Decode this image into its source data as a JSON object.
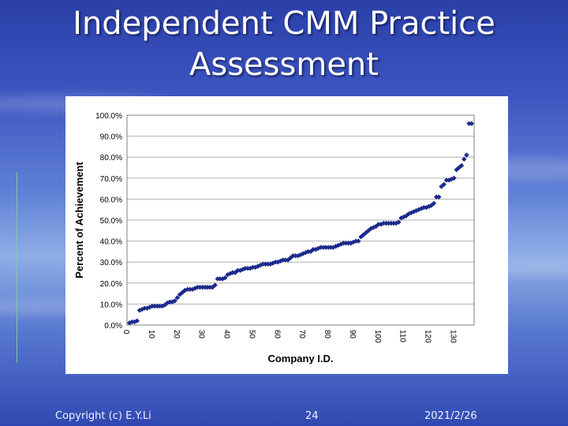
{
  "slide": {
    "title_line1": "Independent CMM Practice",
    "title_line2": "Assessment"
  },
  "footer": {
    "copyright": "Copyright (c) E.Y.Li",
    "page_number": "24",
    "date": "2021/2/26"
  },
  "chart_data": {
    "type": "scatter",
    "xlabel": "Company I.D.",
    "ylabel": "Percent of Achievement",
    "xlim": [
      0,
      138
    ],
    "ylim": [
      0,
      100
    ],
    "xticks": [
      "0",
      "10",
      "20",
      "30",
      "40",
      "50",
      "60",
      "70",
      "80",
      "90",
      "100",
      "110",
      "120",
      "130"
    ],
    "yticks": [
      "0.0%",
      "10.0%",
      "20.0%",
      "30.0%",
      "40.0%",
      "50.0%",
      "60.0%",
      "70.0%",
      "80.0%",
      "90.0%",
      "100.0%"
    ],
    "grid": "horizontal",
    "marker_color": "#1c2a8c",
    "values": [
      1,
      1.5,
      1.5,
      2,
      7,
      7.5,
      8,
      8,
      8.5,
      9,
      9,
      9,
      9,
      9,
      9.5,
      10.5,
      11,
      11,
      11.5,
      13,
      14.5,
      15.5,
      16.5,
      17,
      17,
      17,
      17.5,
      18,
      18,
      18,
      18,
      18,
      18,
      18,
      19,
      22,
      22,
      22,
      22.5,
      24,
      24.5,
      25,
      25,
      26,
      26,
      26.5,
      27,
      27,
      27,
      27.5,
      27.5,
      28,
      28.5,
      29,
      29,
      29,
      29,
      29.5,
      30,
      30,
      30.5,
      31,
      31,
      31,
      32,
      33,
      33,
      33,
      33.5,
      34,
      34.5,
      35,
      35,
      36,
      36,
      36.5,
      37,
      37,
      37,
      37,
      37,
      37,
      37.5,
      38,
      38.5,
      39,
      39,
      39,
      39,
      39.5,
      40,
      40,
      42,
      43,
      44,
      45,
      46,
      46.5,
      47,
      48,
      48,
      48.5,
      48.5,
      48.5,
      48.5,
      48.5,
      48.5,
      49,
      51,
      51.5,
      52,
      53,
      53.5,
      54,
      54.5,
      55,
      55.5,
      56,
      56,
      56.5,
      57,
      58,
      61,
      61,
      66,
      67,
      69,
      69,
      69.5,
      70,
      74,
      75,
      76,
      79,
      81,
      96,
      96
    ]
  }
}
